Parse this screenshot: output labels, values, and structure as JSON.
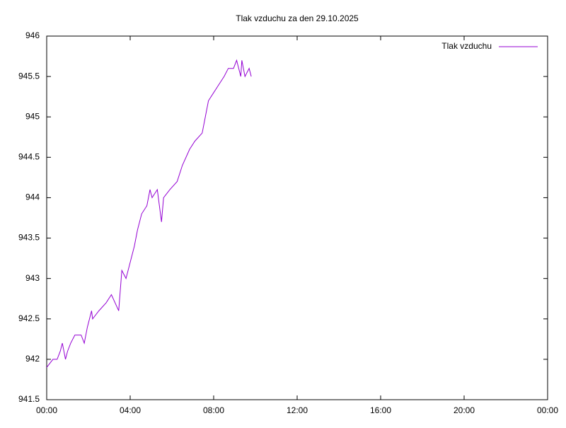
{
  "chart_data": {
    "type": "line",
    "title": "Tlak vzduchu za den 29.10.2025",
    "x": [
      0,
      0.3,
      0.5,
      0.65,
      0.75,
      0.9,
      1.0,
      1.15,
      1.35,
      1.65,
      1.8,
      1.95,
      2.15,
      2.2,
      2.5,
      2.85,
      3.1,
      3.45,
      3.6,
      3.8,
      4.0,
      4.2,
      4.35,
      4.55,
      4.8,
      4.95,
      5.05,
      5.3,
      5.5,
      5.6,
      5.9,
      6.25,
      6.5,
      6.85,
      7.1,
      7.45,
      7.6,
      7.75,
      8.0,
      8.25,
      8.5,
      8.7,
      8.95,
      9.1,
      9.3,
      9.35,
      9.5,
      9.7,
      9.8
    ],
    "series": [
      {
        "name": "Tlak vzduchu",
        "color": "#9400d3",
        "values": [
          941.9,
          942,
          942,
          942.1,
          942.2,
          942,
          942.1,
          942.2,
          942.3,
          942.3,
          942.2,
          942.4,
          942.6,
          942.5,
          942.6,
          942.7,
          942.8,
          942.6,
          943.1,
          943,
          943.2,
          943.4,
          943.6,
          943.8,
          943.9,
          944.1,
          944,
          944.1,
          943.7,
          944,
          944.1,
          944.2,
          944.4,
          944.6,
          944.7,
          944.8,
          945,
          945.2,
          945.3,
          945.4,
          945.5,
          945.6,
          945.6,
          945.7,
          945.5,
          945.7,
          945.5,
          945.6,
          945.5
        ]
      }
    ],
    "xlim": [
      0,
      24
    ],
    "xticks": [
      {
        "value": 0,
        "label": "00:00"
      },
      {
        "value": 4,
        "label": "04:00"
      },
      {
        "value": 8,
        "label": "08:00"
      },
      {
        "value": 12,
        "label": "12:00"
      },
      {
        "value": 16,
        "label": "16:00"
      },
      {
        "value": 20,
        "label": "20:00"
      },
      {
        "value": 24,
        "label": "00:00"
      }
    ],
    "ylim": [
      941.5,
      946
    ],
    "yticks": [
      941.5,
      942,
      942.5,
      943,
      943.5,
      944,
      944.5,
      945,
      945.5,
      946
    ],
    "legend": "top-right"
  }
}
